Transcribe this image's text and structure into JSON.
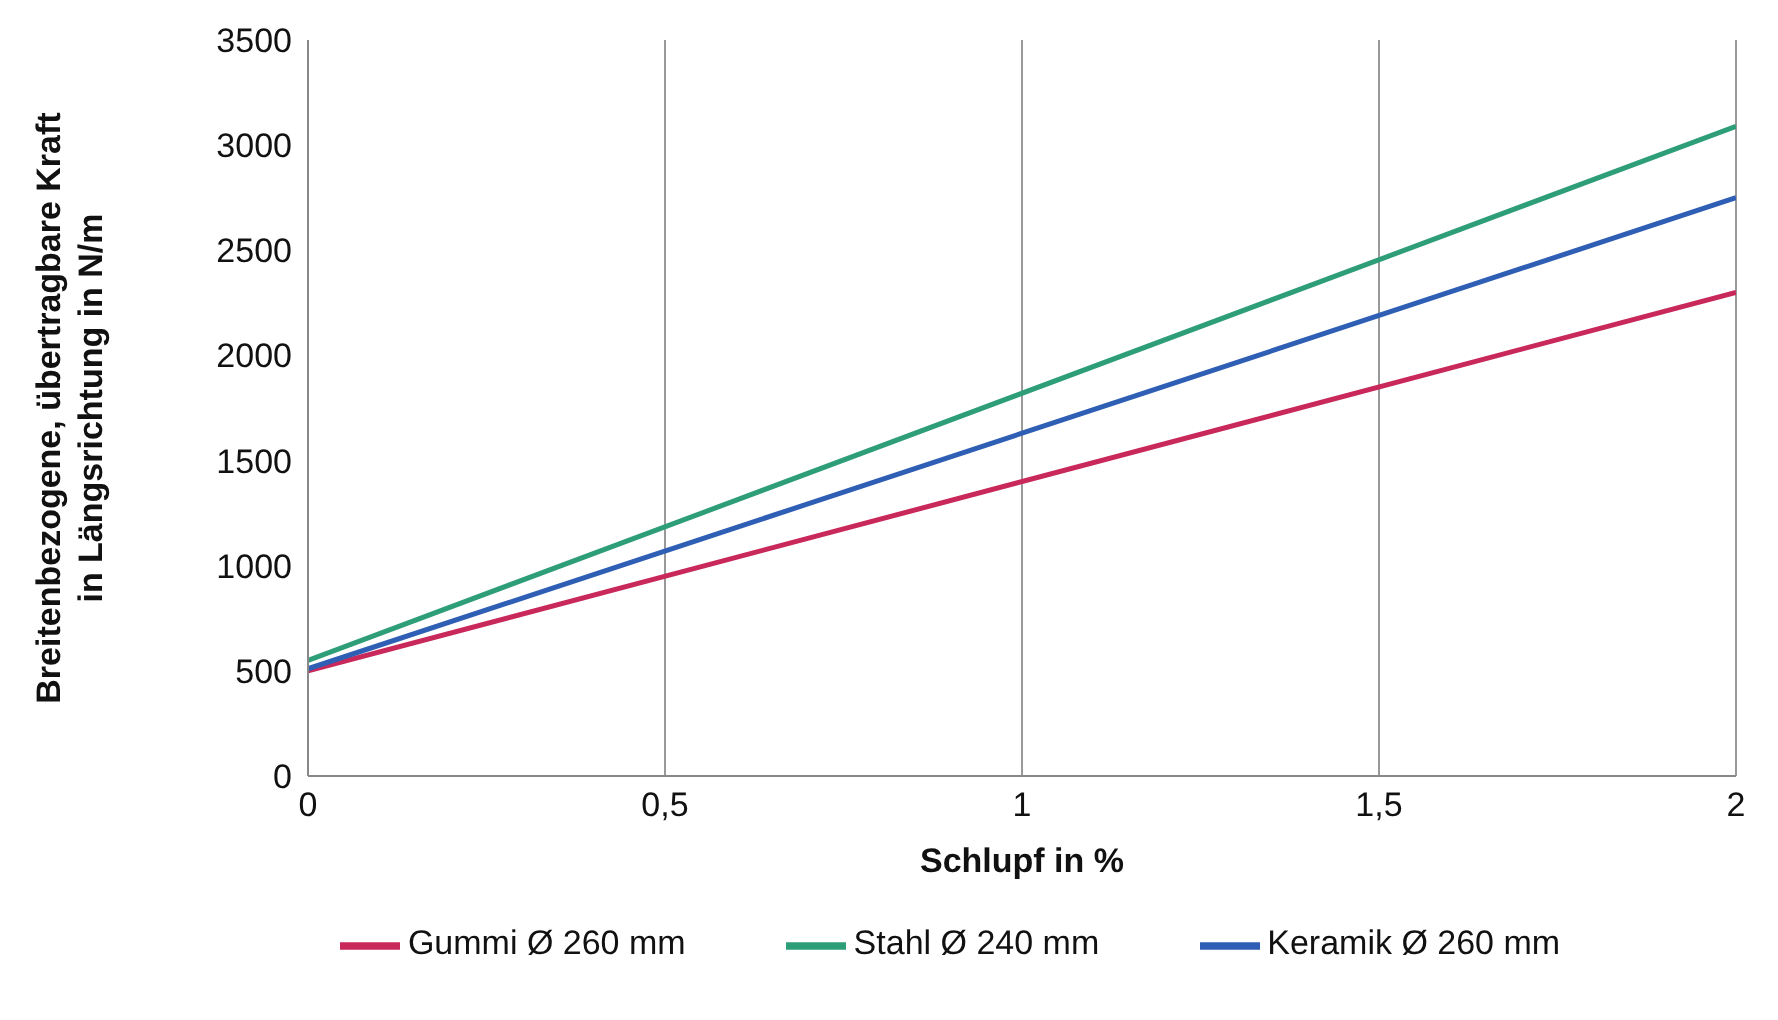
{
  "chart_data": {
    "type": "line",
    "xlabel": "Schlupf in %",
    "ylabel": "Breitenbezogene, übertragbare Kraft\nin Längsrichtung in N/m",
    "x": [
      0,
      2
    ],
    "series": [
      {
        "name": "Gummi Ø 260 mm",
        "color": "#c8285a",
        "values": [
          500,
          2300
        ]
      },
      {
        "name": "Stahl Ø 240 mm",
        "color": "#2e9e78",
        "values": [
          550,
          3090
        ]
      },
      {
        "name": "Keramik Ø 260 mm",
        "color": "#2f5fb5",
        "values": [
          510,
          2750
        ]
      }
    ],
    "xlim": [
      0,
      2
    ],
    "xticks": [
      0,
      {
        "value": 0.5,
        "label": "0,5"
      },
      1,
      {
        "value": 1.5,
        "label": "1,5"
      },
      2
    ],
    "ylim": [
      0,
      3500
    ],
    "yticks": [
      0,
      500,
      1000,
      1500,
      2000,
      2500,
      3000,
      3500
    ],
    "grid": true,
    "legend": "bottom",
    "marker": "none",
    "line_style": "solid"
  }
}
